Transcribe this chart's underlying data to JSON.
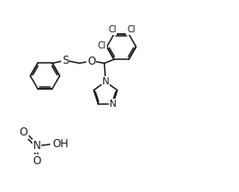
{
  "bg_color": "#ffffff",
  "line_color": "#1a1a1a",
  "line_width": 1.1,
  "font_size": 7.5,
  "figsize": [
    2.66,
    2.14
  ],
  "dpi": 100,
  "xlim": [
    0,
    10
  ],
  "ylim": [
    0,
    8
  ]
}
